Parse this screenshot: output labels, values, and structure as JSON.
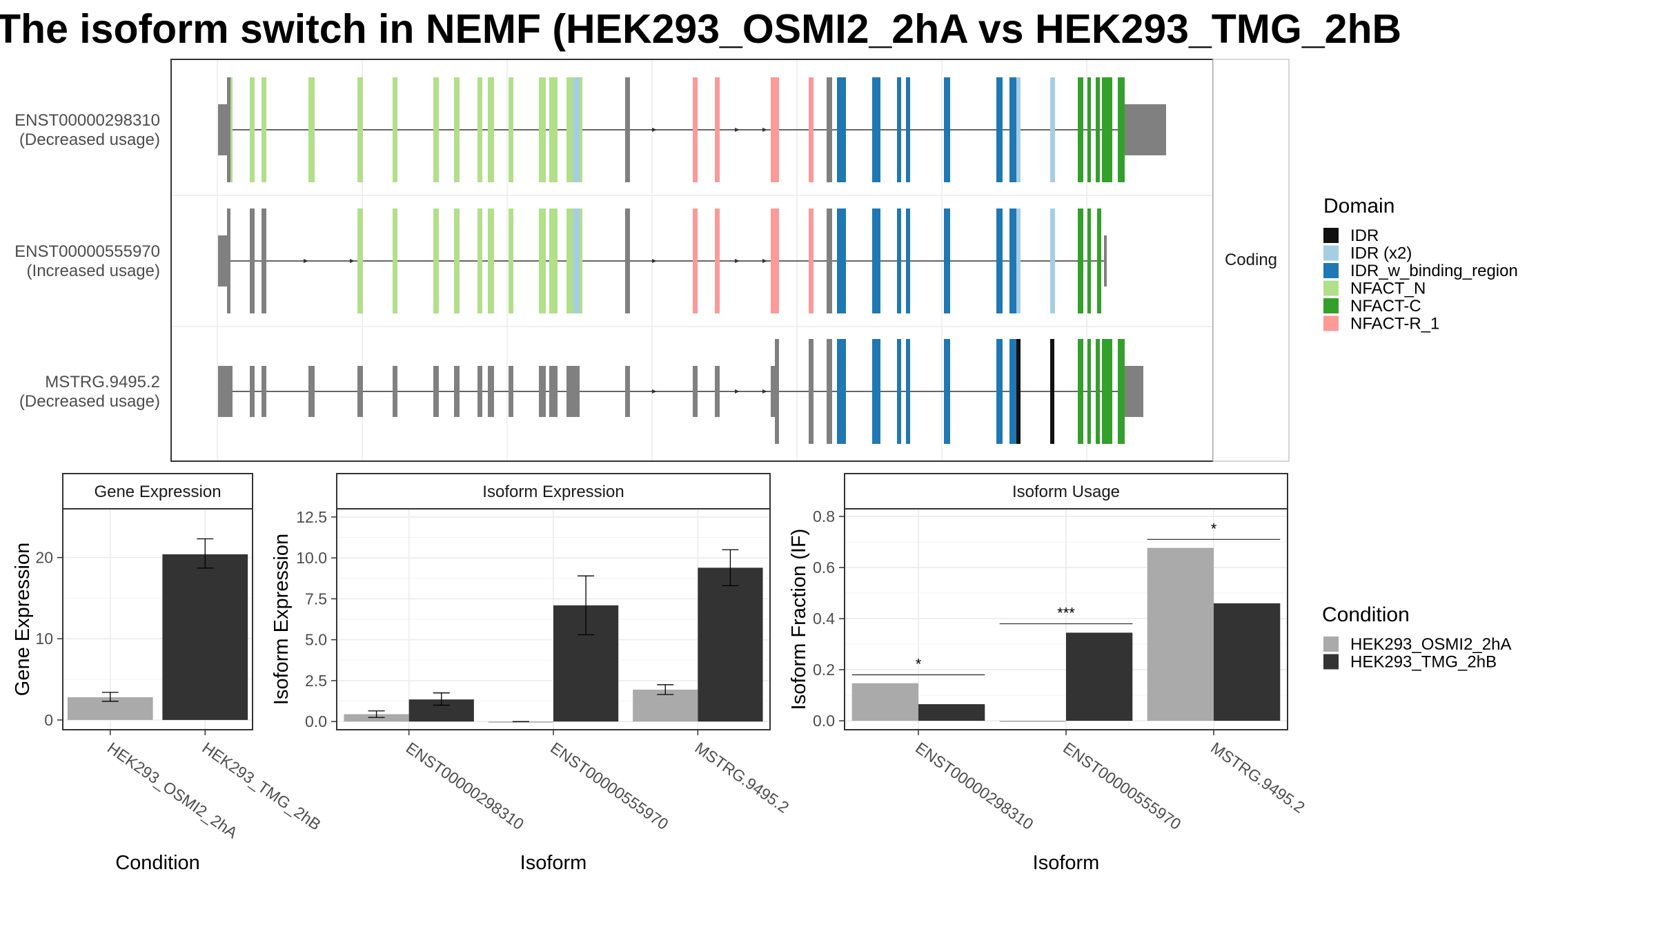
{
  "title": "The isoform switch in NEMF (HEK293_OSMI2_2hA vs HEK293_TMG_2hB",
  "legends": {
    "domain": {
      "title": "Domain",
      "items": [
        {
          "label": "IDR",
          "color": "#111111"
        },
        {
          "label": "IDR (x2)",
          "color": "#a6cee3"
        },
        {
          "label": "IDR_w_binding_region",
          "color": "#1f78b4"
        },
        {
          "label": "NFACT_N",
          "color": "#b2df8a"
        },
        {
          "label": "NFACT-C",
          "color": "#33a02c"
        },
        {
          "label": "NFACT-R_1",
          "color": "#fb9a99"
        }
      ]
    },
    "condition": {
      "title": "Condition",
      "items": [
        {
          "label": "HEK293_OSMI2_2hA",
          "color": "#aaaaaa"
        },
        {
          "label": "HEK293_TMG_2hB",
          "color": "#333333"
        }
      ]
    }
  },
  "structure_panel": {
    "strip_label": "Coding",
    "transcripts": [
      {
        "name": "ENST00000298310",
        "usage": "(Decreased usage)"
      },
      {
        "name": "ENST00000555970",
        "usage": "(Increased usage)"
      },
      {
        "name": "MSTRG.9495.2",
        "usage": "(Decreased usage)"
      }
    ]
  },
  "chart_data": [
    {
      "type": "bar",
      "panel_title": "Gene Expression",
      "xlabel": "Condition",
      "ylabel": "Gene Expression",
      "ylim": [
        -1.2,
        26
      ],
      "yticks": [
        0,
        10,
        20
      ],
      "ytick_labels": [
        "0",
        "10",
        "20"
      ],
      "categories": [
        "HEK293_OSMI2_2hA",
        "HEK293_TMG_2hB"
      ],
      "bars": [
        {
          "category": "HEK293_OSMI2_2hA",
          "condition": "HEK293_OSMI2_2hA",
          "value": 2.8,
          "err_low": 2.3,
          "err_high": 3.4
        },
        {
          "category": "HEK293_TMG_2hB",
          "condition": "HEK293_TMG_2hB",
          "value": 20.4,
          "err_low": 18.7,
          "err_high": 22.3
        }
      ]
    },
    {
      "type": "bar",
      "panel_title": "Isoform Expression",
      "xlabel": "Isoform",
      "ylabel": "Isoform Expression",
      "ylim": [
        -0.5,
        13
      ],
      "yticks": [
        0,
        2.5,
        5,
        7.5,
        10,
        12.5
      ],
      "ytick_labels": [
        "0.0",
        "2.5",
        "5.0",
        "7.5",
        "10.0",
        "12.5"
      ],
      "categories": [
        "ENST00000298310",
        "ENST00000555970",
        "MSTRG.9495.2"
      ],
      "bars": [
        {
          "category": "ENST00000298310",
          "condition": "HEK293_OSMI2_2hA",
          "value": 0.45,
          "err_low": 0.25,
          "err_high": 0.65
        },
        {
          "category": "ENST00000298310",
          "condition": "HEK293_TMG_2hB",
          "value": 1.35,
          "err_low": 1.0,
          "err_high": 1.75
        },
        {
          "category": "ENST00000555970",
          "condition": "HEK293_OSMI2_2hA",
          "value": 0.0,
          "err_low": 0.0,
          "err_high": 0.0
        },
        {
          "category": "ENST00000555970",
          "condition": "HEK293_TMG_2hB",
          "value": 7.1,
          "err_low": 5.3,
          "err_high": 8.9
        },
        {
          "category": "MSTRG.9495.2",
          "condition": "HEK293_OSMI2_2hA",
          "value": 1.95,
          "err_low": 1.65,
          "err_high": 2.25
        },
        {
          "category": "MSTRG.9495.2",
          "condition": "HEK293_TMG_2hB",
          "value": 9.4,
          "err_low": 8.3,
          "err_high": 10.5
        }
      ]
    },
    {
      "type": "bar",
      "panel_title": "Isoform Usage",
      "xlabel": "Isoform",
      "ylabel": "Isoform Fraction (IF)",
      "ylim": [
        -0.035,
        0.83
      ],
      "yticks": [
        0,
        0.2,
        0.4,
        0.6,
        0.8
      ],
      "ytick_labels": [
        "0.0",
        "0.2",
        "0.4",
        "0.6",
        "0.8"
      ],
      "categories": [
        "ENST00000298310",
        "ENST00000555970",
        "MSTRG.9495.2"
      ],
      "bars": [
        {
          "category": "ENST00000298310",
          "condition": "HEK293_OSMI2_2hA",
          "value": 0.147
        },
        {
          "category": "ENST00000298310",
          "condition": "HEK293_TMG_2hB",
          "value": 0.065
        },
        {
          "category": "ENST00000555970",
          "condition": "HEK293_OSMI2_2hA",
          "value": 0.0
        },
        {
          "category": "ENST00000555970",
          "condition": "HEK293_TMG_2hB",
          "value": 0.345
        },
        {
          "category": "MSTRG.9495.2",
          "condition": "HEK293_OSMI2_2hA",
          "value": 0.677
        },
        {
          "category": "MSTRG.9495.2",
          "condition": "HEK293_TMG_2hB",
          "value": 0.46
        }
      ],
      "significance": [
        {
          "category": "ENST00000298310",
          "label": "*",
          "y": 0.18
        },
        {
          "category": "ENST00000555970",
          "label": "***",
          "y": 0.38
        },
        {
          "category": "MSTRG.9495.2",
          "label": "*",
          "y": 0.71
        }
      ]
    }
  ]
}
